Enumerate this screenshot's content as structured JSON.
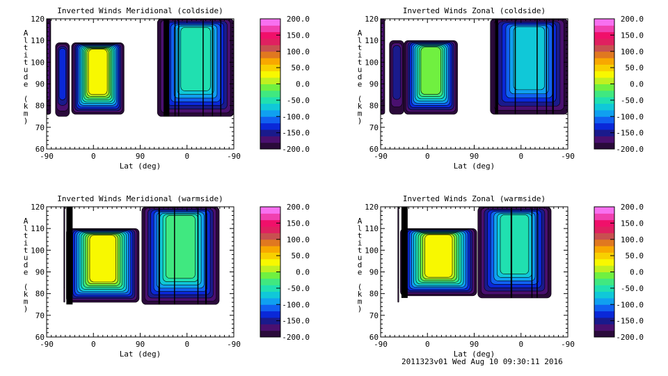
{
  "chart_data": [
    {
      "type": "heatmap",
      "title": "Inverted Winds Meridional (coldside)",
      "xlabel": "Lat (deg)",
      "ylabel": "Altitude (km)",
      "xticks": [
        "-90",
        "0",
        "90",
        "0",
        "-90"
      ],
      "yticks": [
        "60",
        "70",
        "80",
        "90",
        "100",
        "110",
        "120"
      ],
      "ylim": [
        60,
        120
      ],
      "colorbar": {
        "range": [
          -200,
          200
        ],
        "ticks": [
          "-200.0",
          "-150.0",
          "-100.0",
          "-50.0",
          "0.0",
          "50.0",
          "100.0",
          "150.0",
          "200.0"
        ]
      },
      "regions": [
        {
          "x": [
            0,
            8
          ],
          "alt": [
            76,
            120
          ],
          "core": -200
        },
        {
          "x": [
            17,
            44
          ],
          "alt": [
            75,
            109
          ],
          "core": -140
        },
        {
          "x": [
            48,
            149
          ],
          "alt": [
            76,
            109
          ],
          "core": 10
        },
        {
          "x": [
            213,
            360
          ],
          "alt": [
            75,
            120
          ],
          "core": -60
        }
      ],
      "stripes": [
        [
          225,
          236
        ],
        [
          246,
          248
        ],
        [
          253,
          255
        ],
        [
          300,
          302
        ],
        [
          318,
          320
        ],
        [
          334,
          336
        ]
      ]
    },
    {
      "type": "heatmap",
      "title": "Inverted Winds Zonal (coldside)",
      "xlabel": "Lat (deg)",
      "ylabel": "Altitude (km)",
      "xticks": [
        "-90",
        "0",
        "90",
        "0",
        "-90"
      ],
      "yticks": [
        "60",
        "70",
        "80",
        "90",
        "100",
        "110",
        "120"
      ],
      "ylim": [
        60,
        120
      ],
      "colorbar": {
        "range": [
          -200,
          200
        ],
        "ticks": [
          "-200.0",
          "-150.0",
          "-100.0",
          "-50.0",
          "0.0",
          "50.0",
          "100.0",
          "150.0",
          "200.0"
        ]
      },
      "regions": [
        {
          "x": [
            0,
            8
          ],
          "alt": [
            76,
            120
          ],
          "core": -200
        },
        {
          "x": [
            17,
            45
          ],
          "alt": [
            76,
            110
          ],
          "core": -170
        },
        {
          "x": [
            45,
            148
          ],
          "alt": [
            76,
            110
          ],
          "core": -20
        },
        {
          "x": [
            211,
            360
          ],
          "alt": [
            76,
            120
          ],
          "core": -80
        }
      ],
      "stripes": [
        [
          220,
          226
        ],
        [
          258,
          260
        ],
        [
          300,
          302
        ],
        [
          318,
          320
        ],
        [
          330,
          333
        ]
      ]
    },
    {
      "type": "heatmap",
      "title": "Inverted Winds Meridional (warmside)",
      "xlabel": "Lat (deg)",
      "ylabel": "Altitude (km)",
      "xticks": [
        "-90",
        "0",
        "90",
        "0",
        "-90"
      ],
      "yticks": [
        "60",
        "70",
        "80",
        "90",
        "100",
        "110",
        "120"
      ],
      "ylim": [
        60,
        120
      ],
      "colorbar": {
        "range": [
          -200,
          200
        ],
        "ticks": [
          "-200.0",
          "-150.0",
          "-100.0",
          "-50.0",
          "0.0",
          "50.0",
          "100.0",
          "150.0",
          "200.0"
        ]
      },
      "regions": [
        {
          "x": [
            33,
            35
          ],
          "alt": [
            76,
            120
          ],
          "core": -200
        },
        {
          "x": [
            38,
            178
          ],
          "alt": [
            76,
            110
          ],
          "core": 20
        },
        {
          "x": [
            183,
            332
          ],
          "alt": [
            75,
            120
          ],
          "core": -40
        }
      ],
      "stripes": [
        [
          38,
          50
        ],
        [
          215,
          218
        ],
        [
          245,
          247
        ],
        [
          290,
          292
        ],
        [
          305,
          308
        ]
      ]
    },
    {
      "type": "heatmap",
      "title": "Inverted Winds Zonal (warmside)",
      "xlabel": "Lat (deg)",
      "ylabel": "Altitude (km)",
      "xticks": [
        "-90",
        "0",
        "90",
        "0",
        "-90"
      ],
      "yticks": [
        "60",
        "70",
        "80",
        "90",
        "100",
        "110",
        "120"
      ],
      "ylim": [
        60,
        120
      ],
      "colorbar": {
        "range": [
          -200,
          200
        ],
        "ticks": [
          "-200.0",
          "-150.0",
          "-100.0",
          "-50.0",
          "0.0",
          "50.0",
          "100.0",
          "150.0",
          "200.0"
        ]
      },
      "regions": [
        {
          "x": [
            33,
            35
          ],
          "alt": [
            76,
            120
          ],
          "core": -200
        },
        {
          "x": [
            38,
            185
          ],
          "alt": [
            79,
            110
          ],
          "core": 10
        },
        {
          "x": [
            187,
            328
          ],
          "alt": [
            78,
            120
          ],
          "core": -70
        }
      ],
      "stripes": [
        [
          40,
          52
        ],
        [
          250,
          253
        ],
        [
          290,
          292
        ],
        [
          300,
          302
        ]
      ]
    }
  ],
  "footer": "2011323v01 Wed Aug 10 09:30:11 2016",
  "palette": [
    "#2a0a3a",
    "#4a1070",
    "#1a1a8c",
    "#0a28d8",
    "#1060f0",
    "#10a0f0",
    "#10c8d8",
    "#20e0b0",
    "#40e880",
    "#70f040",
    "#c0f020",
    "#f8f800",
    "#f8d000",
    "#f8a800",
    "#e07820",
    "#c85050",
    "#e02060",
    "#f0106a",
    "#f040b0",
    "#f870f0"
  ],
  "colors": {
    "stripe": "#000000",
    "axis": "#000000"
  }
}
